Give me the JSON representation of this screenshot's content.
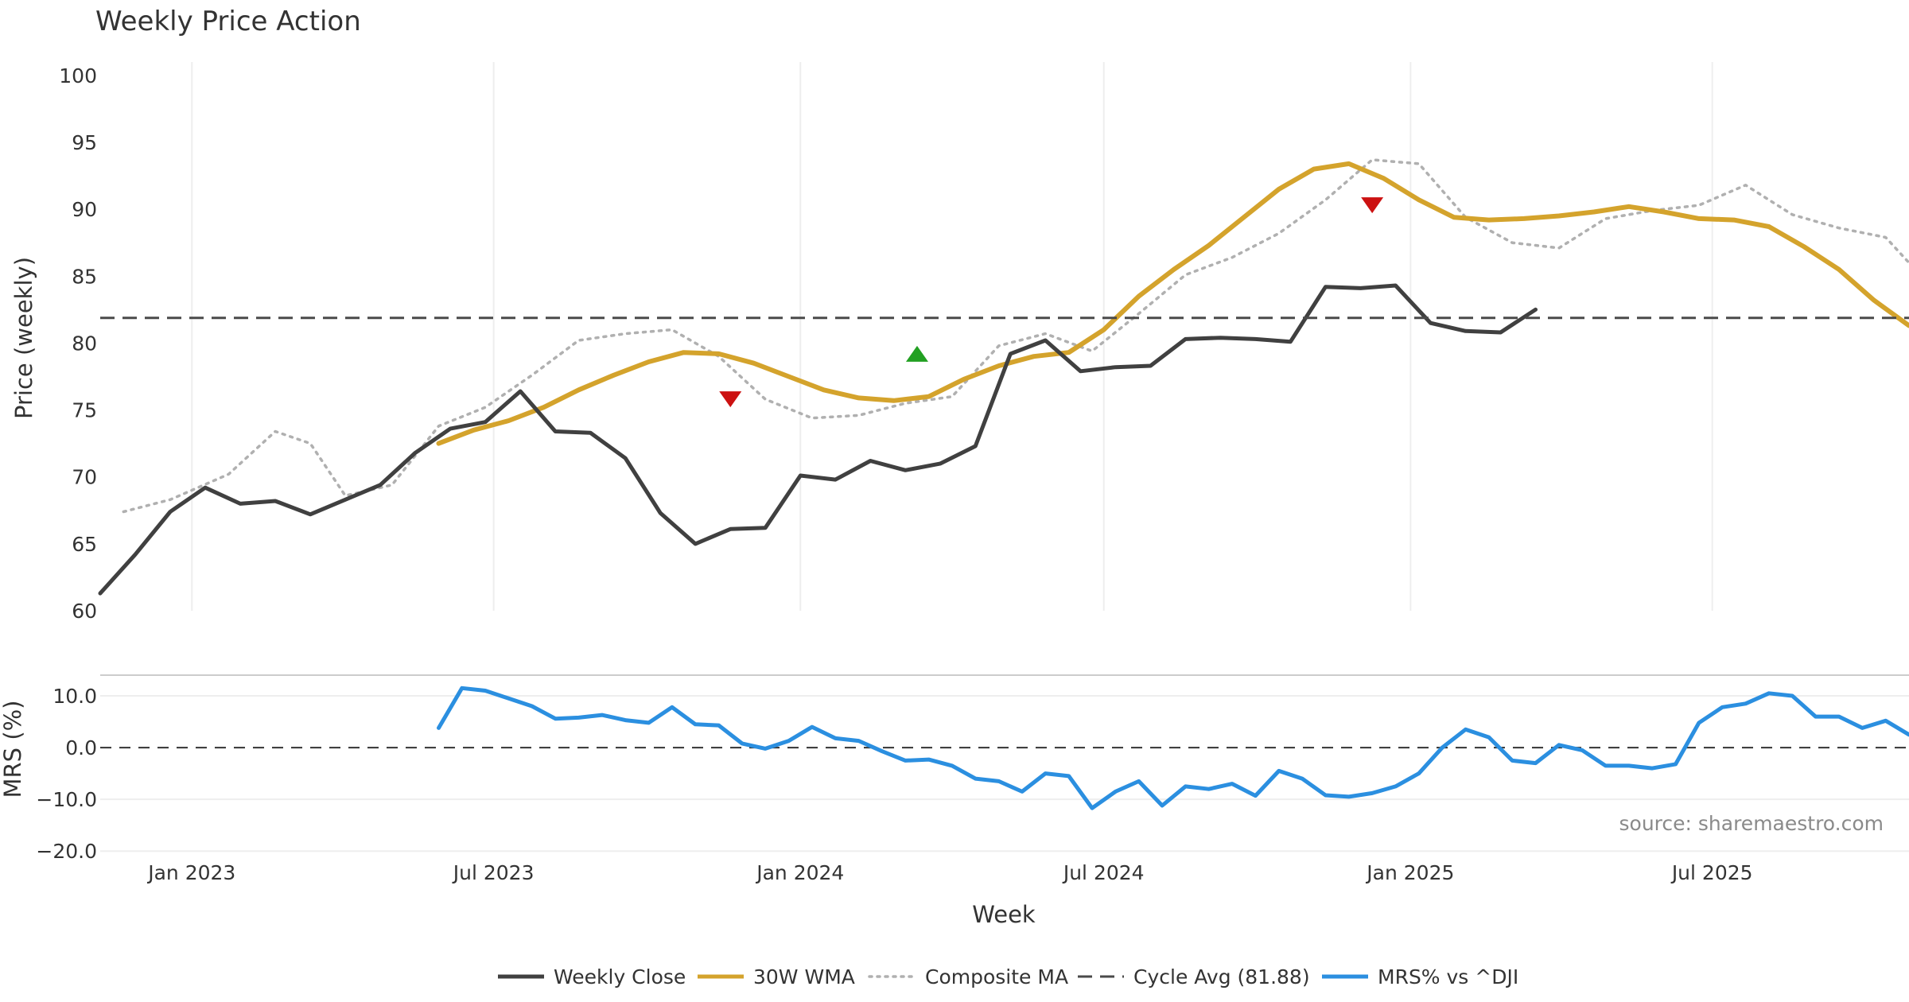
{
  "chart_data": {
    "title": "Weekly Price Action",
    "xlabel": "Week",
    "source": "source: sharemaestro.com",
    "x_range": [
      "2022-11-07",
      "2025-10-27"
    ],
    "x_ticks": [
      {
        "date": "2023-01-01",
        "label": "Jan 2023"
      },
      {
        "date": "2023-07-01",
        "label": "Jul 2023"
      },
      {
        "date": "2024-01-01",
        "label": "Jan 2024"
      },
      {
        "date": "2024-07-01",
        "label": "Jul 2024"
      },
      {
        "date": "2025-01-01",
        "label": "Jan 2025"
      },
      {
        "date": "2025-07-01",
        "label": "Jul 2025"
      }
    ],
    "price_panel": {
      "type": "line",
      "ylabel": "Price (weekly)",
      "ylim": [
        60,
        101
      ],
      "yticks": [
        {
          "value": 60,
          "label": "60"
        },
        {
          "value": 65,
          "label": "65"
        },
        {
          "value": 70,
          "label": "70"
        },
        {
          "value": 75,
          "label": "75"
        },
        {
          "value": 80,
          "label": "80"
        },
        {
          "value": 85,
          "label": "85"
        },
        {
          "value": 90,
          "label": "90"
        },
        {
          "value": 95,
          "label": "95"
        },
        {
          "value": 100,
          "label": "100"
        }
      ],
      "series": [
        {
          "name": "Weekly Close",
          "color": "#404040",
          "points": [
            [
              "2022-11-07",
              61.3
            ],
            [
              "2022-11-28",
              64.2
            ],
            [
              "2022-12-19",
              67.4
            ],
            [
              "2023-01-09",
              69.2
            ],
            [
              "2023-01-30",
              68.0
            ],
            [
              "2023-02-20",
              68.2
            ],
            [
              "2023-03-13",
              67.2
            ],
            [
              "2023-04-03",
              68.3
            ],
            [
              "2023-04-24",
              69.4
            ],
            [
              "2023-05-15",
              71.8
            ],
            [
              "2023-06-05",
              73.6
            ],
            [
              "2023-06-26",
              74.1
            ],
            [
              "2023-07-17",
              76.4
            ],
            [
              "2023-08-07",
              73.4
            ],
            [
              "2023-08-28",
              73.3
            ],
            [
              "2023-09-18",
              71.4
            ],
            [
              "2023-10-09",
              67.3
            ],
            [
              "2023-10-30",
              65.0
            ],
            [
              "2023-11-20",
              66.1
            ],
            [
              "2023-12-11",
              66.2
            ],
            [
              "2024-01-01",
              70.1
            ],
            [
              "2024-01-22",
              69.8
            ],
            [
              "2024-02-12",
              71.2
            ],
            [
              "2024-03-04",
              70.5
            ],
            [
              "2024-03-25",
              71.0
            ],
            [
              "2024-04-15",
              72.3
            ],
            [
              "2024-05-06",
              79.2
            ],
            [
              "2024-05-27",
              80.2
            ],
            [
              "2024-06-17",
              77.9
            ],
            [
              "2024-07-08",
              78.2
            ],
            [
              "2024-07-29",
              78.3
            ],
            [
              "2024-08-19",
              80.3
            ],
            [
              "2024-09-09",
              80.4
            ],
            [
              "2024-09-30",
              80.3
            ],
            [
              "2024-10-21",
              80.1
            ],
            [
              "2024-11-11",
              84.2
            ],
            [
              "2024-12-02",
              84.1
            ],
            [
              "2024-12-23",
              84.3
            ],
            [
              "2025-01-13",
              81.5
            ],
            [
              "2025-02-03",
              80.9
            ],
            [
              "2025-02-24",
              80.8
            ],
            [
              "2025-03-17",
              82.5
            ]
          ]
        },
        {
          "name": "30W WMA",
          "color": "#d4a32c",
          "points": [
            [
              "2023-05-29",
              72.5
            ],
            [
              "2023-06-19",
              73.5
            ],
            [
              "2023-07-10",
              74.2
            ],
            [
              "2023-07-31",
              75.2
            ],
            [
              "2023-08-21",
              76.5
            ],
            [
              "2023-09-11",
              77.6
            ],
            [
              "2023-10-02",
              78.6
            ],
            [
              "2023-10-23",
              79.3
            ],
            [
              "2023-11-13",
              79.2
            ],
            [
              "2023-12-04",
              78.5
            ],
            [
              "2023-12-25",
              77.5
            ],
            [
              "2024-01-15",
              76.5
            ],
            [
              "2024-02-05",
              75.9
            ],
            [
              "2024-02-26",
              75.7
            ],
            [
              "2024-03-18",
              76.0
            ],
            [
              "2024-04-08",
              77.3
            ],
            [
              "2024-04-29",
              78.3
            ],
            [
              "2024-05-20",
              79.0
            ],
            [
              "2024-06-10",
              79.3
            ],
            [
              "2024-07-01",
              81.0
            ],
            [
              "2024-07-22",
              83.5
            ],
            [
              "2024-08-12",
              85.5
            ],
            [
              "2024-09-02",
              87.3
            ],
            [
              "2024-09-23",
              89.4
            ],
            [
              "2024-10-14",
              91.5
            ],
            [
              "2024-11-04",
              93.0
            ],
            [
              "2024-11-25",
              93.4
            ],
            [
              "2024-12-16",
              92.3
            ],
            [
              "2025-01-06",
              90.7
            ],
            [
              "2025-01-27",
              89.4
            ],
            [
              "2025-02-17",
              89.2
            ],
            [
              "2025-03-10",
              89.3
            ],
            [
              "2025-03-31",
              89.5
            ],
            [
              "2025-04-21",
              89.8
            ],
            [
              "2025-05-12",
              90.2
            ],
            [
              "2025-06-02",
              89.8
            ],
            [
              "2025-06-23",
              89.3
            ],
            [
              "2025-07-14",
              89.2
            ],
            [
              "2025-08-04",
              88.7
            ],
            [
              "2025-08-25",
              87.2
            ],
            [
              "2025-09-15",
              85.5
            ],
            [
              "2025-10-06",
              83.2
            ],
            [
              "2025-10-27",
              81.3
            ]
          ]
        },
        {
          "name": "Composite MA",
          "color": "#b0b0b0",
          "points": [
            [
              "2022-11-21",
              67.4
            ],
            [
              "2022-12-19",
              68.3
            ],
            [
              "2023-01-23",
              70.2
            ],
            [
              "2023-02-20",
              73.4
            ],
            [
              "2023-03-13",
              72.5
            ],
            [
              "2023-04-03",
              68.6
            ],
            [
              "2023-05-01",
              69.4
            ],
            [
              "2023-05-29",
              73.8
            ],
            [
              "2023-06-26",
              75.2
            ],
            [
              "2023-07-24",
              77.6
            ],
            [
              "2023-08-21",
              80.2
            ],
            [
              "2023-09-18",
              80.7
            ],
            [
              "2023-10-16",
              81.0
            ],
            [
              "2023-11-13",
              79.0
            ],
            [
              "2023-12-11",
              75.8
            ],
            [
              "2024-01-08",
              74.4
            ],
            [
              "2024-02-05",
              74.6
            ],
            [
              "2024-03-04",
              75.5
            ],
            [
              "2024-04-01",
              76.0
            ],
            [
              "2024-04-29",
              79.8
            ],
            [
              "2024-05-27",
              80.7
            ],
            [
              "2024-06-24",
              79.4
            ],
            [
              "2024-07-22",
              82.2
            ],
            [
              "2024-08-19",
              85.1
            ],
            [
              "2024-09-16",
              86.4
            ],
            [
              "2024-10-14",
              88.2
            ],
            [
              "2024-11-11",
              90.7
            ],
            [
              "2024-12-09",
              93.7
            ],
            [
              "2025-01-06",
              93.4
            ],
            [
              "2025-02-03",
              89.4
            ],
            [
              "2025-03-03",
              87.5
            ],
            [
              "2025-03-31",
              87.1
            ],
            [
              "2025-04-28",
              89.3
            ],
            [
              "2025-05-26",
              89.9
            ],
            [
              "2025-06-23",
              90.3
            ],
            [
              "2025-07-21",
              91.8
            ],
            [
              "2025-08-18",
              89.6
            ],
            [
              "2025-09-15",
              88.6
            ],
            [
              "2025-10-13",
              87.9
            ],
            [
              "2025-10-27",
              86.0
            ]
          ]
        }
      ],
      "reference_line": {
        "name": "Cycle Avg (81.88)",
        "value": 81.88,
        "color": "#4a4a4a"
      },
      "signals": [
        {
          "date": "2023-11-20",
          "value": 75.8,
          "direction": "down",
          "color": "#cc1111"
        },
        {
          "date": "2024-03-11",
          "value": 79.2,
          "direction": "up",
          "color": "#22a022"
        },
        {
          "date": "2024-12-09",
          "value": 90.3,
          "direction": "down",
          "color": "#cc1111"
        }
      ]
    },
    "mrs_panel": {
      "type": "line",
      "ylabel": "MRS (%)",
      "ylim": [
        -21.5,
        14
      ],
      "yticks": [
        {
          "value": 10,
          "label": "10.0"
        },
        {
          "value": 0,
          "label": "0.0"
        },
        {
          "value": -10,
          "label": "−10.0"
        },
        {
          "value": -20,
          "label": "−20.0"
        }
      ],
      "zero_line": true,
      "series": [
        {
          "name": "MRS% vs ^DJI",
          "color": "#2b8fe0",
          "points": [
            [
              "2023-05-29",
              3.8
            ],
            [
              "2023-06-12",
              11.5
            ],
            [
              "2023-06-26",
              11.0
            ],
            [
              "2023-07-10",
              9.5
            ],
            [
              "2023-07-24",
              8.0
            ],
            [
              "2023-08-07",
              5.6
            ],
            [
              "2023-08-21",
              5.8
            ],
            [
              "2023-09-04",
              6.3
            ],
            [
              "2023-09-18",
              5.3
            ],
            [
              "2023-10-02",
              4.8
            ],
            [
              "2023-10-16",
              7.8
            ],
            [
              "2023-10-30",
              4.5
            ],
            [
              "2023-11-13",
              4.3
            ],
            [
              "2023-11-27",
              0.8
            ],
            [
              "2023-12-11",
              -0.2
            ],
            [
              "2023-12-25",
              1.3
            ],
            [
              "2024-01-08",
              4.0
            ],
            [
              "2024-01-22",
              1.8
            ],
            [
              "2024-02-05",
              1.3
            ],
            [
              "2024-02-19",
              -0.7
            ],
            [
              "2024-03-04",
              -2.5
            ],
            [
              "2024-03-18",
              -2.3
            ],
            [
              "2024-04-01",
              -3.5
            ],
            [
              "2024-04-15",
              -6.0
            ],
            [
              "2024-04-29",
              -6.5
            ],
            [
              "2024-05-13",
              -8.5
            ],
            [
              "2024-05-27",
              -5.0
            ],
            [
              "2024-06-10",
              -5.5
            ],
            [
              "2024-06-24",
              -11.7
            ],
            [
              "2024-07-08",
              -8.5
            ],
            [
              "2024-07-22",
              -6.5
            ],
            [
              "2024-08-05",
              -11.2
            ],
            [
              "2024-08-19",
              -7.5
            ],
            [
              "2024-09-02",
              -8.0
            ],
            [
              "2024-09-16",
              -7.0
            ],
            [
              "2024-09-30",
              -9.3
            ],
            [
              "2024-10-14",
              -4.5
            ],
            [
              "2024-10-28",
              -6.0
            ],
            [
              "2024-11-11",
              -9.2
            ],
            [
              "2024-11-25",
              -9.5
            ],
            [
              "2024-12-09",
              -8.8
            ],
            [
              "2024-12-23",
              -7.5
            ],
            [
              "2025-01-06",
              -5.0
            ],
            [
              "2025-01-20",
              0.0
            ],
            [
              "2025-02-03",
              3.5
            ],
            [
              "2025-02-17",
              2.0
            ],
            [
              "2025-03-03",
              -2.5
            ],
            [
              "2025-03-17",
              -3.0
            ],
            [
              "2025-03-31",
              0.5
            ],
            [
              "2025-04-14",
              -0.5
            ],
            [
              "2025-04-28",
              -3.5
            ],
            [
              "2025-05-12",
              -3.5
            ],
            [
              "2025-05-26",
              -4.0
            ],
            [
              "2025-06-09",
              -3.2
            ],
            [
              "2025-06-23",
              4.8
            ],
            [
              "2025-07-07",
              7.8
            ],
            [
              "2025-07-21",
              8.5
            ],
            [
              "2025-08-04",
              10.5
            ],
            [
              "2025-08-18",
              10.0
            ],
            [
              "2025-09-01",
              6.0
            ],
            [
              "2025-09-15",
              6.0
            ],
            [
              "2025-09-29",
              3.8
            ],
            [
              "2025-10-13",
              5.2
            ],
            [
              "2025-10-27",
              2.5
            ]
          ]
        }
      ]
    },
    "legend": {
      "placement": "bottom-center",
      "items": [
        {
          "label": "Weekly Close",
          "style": "solid",
          "color": "#404040"
        },
        {
          "label": "30W WMA",
          "style": "solid",
          "color": "#d4a32c"
        },
        {
          "label": "Composite MA",
          "style": "dotted",
          "color": "#b0b0b0"
        },
        {
          "label": "Cycle Avg (81.88)",
          "style": "dashed",
          "color": "#4a4a4a"
        },
        {
          "label": "MRS% vs ^DJI",
          "style": "solid",
          "color": "#2b8fe0"
        }
      ]
    }
  }
}
